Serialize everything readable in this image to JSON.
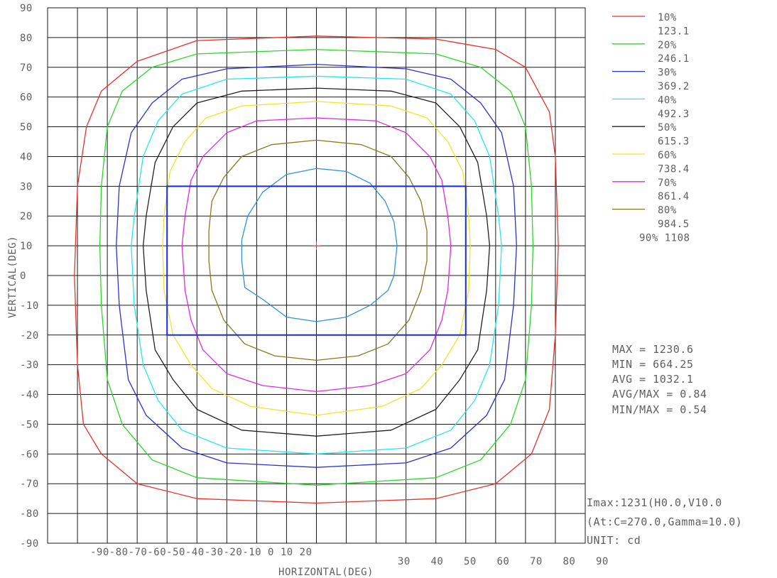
{
  "chart_data": {
    "type": "contour",
    "xlabel": "HORIZONTAL(DEG)",
    "ylabel": "VERTICAL(DEG)",
    "xlim": [
      -90,
      90
    ],
    "ylim": [
      -90,
      90
    ],
    "grid": true,
    "x_tick_labels_row": "-90-80-70-60-50-40-30-20-10 0 10 20",
    "x_tick_labels_right": [
      "30",
      "40",
      "50",
      "60",
      "70",
      "80",
      "90"
    ],
    "y_ticks": [
      "90",
      "80",
      "70",
      "60",
      "50",
      "40",
      "30",
      "20",
      "10",
      "0",
      "-10",
      "-20",
      "-30",
      "-40",
      "-50",
      "-60",
      "-70",
      "-80",
      "-90"
    ],
    "legend_position": "top-right",
    "legend": [
      {
        "percent": "10%",
        "value": "123.1",
        "color": "#e8302c"
      },
      {
        "percent": "20%",
        "value": "246.1",
        "color": "#2ad82a"
      },
      {
        "percent": "30%",
        "value": "369.2",
        "color": "#2a33d2"
      },
      {
        "percent": "40%",
        "value": "492.3",
        "color": "#27e8e8"
      },
      {
        "percent": "50%",
        "value": "615.3",
        "color": "#222222"
      },
      {
        "percent": "60%",
        "value": "738.4",
        "color": "#e8e82a"
      },
      {
        "percent": "70%",
        "value": "861.4",
        "color": "#e02ae0"
      },
      {
        "percent": "80%",
        "value": "984.5",
        "color": "#7f7f1f"
      },
      {
        "percent": "90%",
        "value": "1108",
        "color": "#2f91e0"
      }
    ],
    "contours": [
      {
        "level": "10%",
        "color": "#e8302c",
        "points": [
          [
            0,
            80.5
          ],
          [
            40,
            79.5
          ],
          [
            60,
            76
          ],
          [
            70,
            70
          ],
          [
            78,
            55
          ],
          [
            80,
            40
          ],
          [
            81,
            10
          ],
          [
            80,
            -20
          ],
          [
            78,
            -45
          ],
          [
            72,
            -60
          ],
          [
            60,
            -70
          ],
          [
            40,
            -75
          ],
          [
            0,
            -76.5
          ],
          [
            -40,
            -75
          ],
          [
            -60,
            -70
          ],
          [
            -72,
            -60
          ],
          [
            -78,
            -50
          ],
          [
            -80,
            -30
          ],
          [
            -81,
            0
          ],
          [
            -80,
            30
          ],
          [
            -77,
            50
          ],
          [
            -72,
            62
          ],
          [
            -60,
            72
          ],
          [
            -40,
            79
          ]
        ]
      },
      {
        "level": "20%",
        "color": "#2ad82a",
        "points": [
          [
            0,
            76
          ],
          [
            40,
            74.5
          ],
          [
            55,
            70
          ],
          [
            65,
            62
          ],
          [
            70,
            50
          ],
          [
            72,
            30
          ],
          [
            72.5,
            10
          ],
          [
            72,
            -10
          ],
          [
            70,
            -35
          ],
          [
            65,
            -50
          ],
          [
            55,
            -62
          ],
          [
            40,
            -68
          ],
          [
            0,
            -70.5
          ],
          [
            -40,
            -68
          ],
          [
            -55,
            -62
          ],
          [
            -65,
            -50
          ],
          [
            -70,
            -35
          ],
          [
            -72,
            -10
          ],
          [
            -72.5,
            10
          ],
          [
            -72,
            30
          ],
          [
            -70,
            50
          ],
          [
            -65,
            62
          ],
          [
            -55,
            70
          ],
          [
            -40,
            74.5
          ]
        ]
      },
      {
        "level": "30%",
        "color": "#2a33d2",
        "points": [
          [
            0,
            71
          ],
          [
            30,
            69.5
          ],
          [
            45,
            66
          ],
          [
            55,
            58
          ],
          [
            62,
            48
          ],
          [
            66,
            30
          ],
          [
            67,
            10
          ],
          [
            66,
            -10
          ],
          [
            63,
            -35
          ],
          [
            57,
            -47
          ],
          [
            45,
            -58
          ],
          [
            30,
            -63
          ],
          [
            0,
            -64.5
          ],
          [
            -30,
            -63
          ],
          [
            -45,
            -58
          ],
          [
            -57,
            -47
          ],
          [
            -63,
            -35
          ],
          [
            -66,
            -10
          ],
          [
            -67,
            10
          ],
          [
            -66,
            30
          ],
          [
            -62,
            48
          ],
          [
            -55,
            58
          ],
          [
            -45,
            66
          ],
          [
            -30,
            69.5
          ]
        ]
      },
      {
        "level": "40%",
        "color": "#27e8e8",
        "points": [
          [
            0,
            67
          ],
          [
            30,
            66
          ],
          [
            45,
            61
          ],
          [
            53,
            52
          ],
          [
            58,
            40
          ],
          [
            61,
            20
          ],
          [
            62,
            10
          ],
          [
            61,
            -10
          ],
          [
            58,
            -30
          ],
          [
            53,
            -42
          ],
          [
            45,
            -52
          ],
          [
            30,
            -58
          ],
          [
            0,
            -60
          ],
          [
            -30,
            -58
          ],
          [
            -45,
            -52
          ],
          [
            -53,
            -42
          ],
          [
            -58,
            -30
          ],
          [
            -61,
            -10
          ],
          [
            -62,
            10
          ],
          [
            -61,
            20
          ],
          [
            -58,
            40
          ],
          [
            -53,
            52
          ],
          [
            -45,
            61
          ],
          [
            -30,
            66
          ]
        ]
      },
      {
        "level": "50%",
        "color": "#222222",
        "points": [
          [
            0,
            63
          ],
          [
            25,
            62
          ],
          [
            40,
            58
          ],
          [
            48,
            50
          ],
          [
            54,
            38
          ],
          [
            57,
            20
          ],
          [
            58,
            10
          ],
          [
            57,
            -5
          ],
          [
            54,
            -25
          ],
          [
            48,
            -35
          ],
          [
            40,
            -45
          ],
          [
            25,
            -52
          ],
          [
            0,
            -54
          ],
          [
            -25,
            -52
          ],
          [
            -40,
            -45
          ],
          [
            -48,
            -35
          ],
          [
            -54,
            -25
          ],
          [
            -57,
            -5
          ],
          [
            -58,
            10
          ],
          [
            -57,
            20
          ],
          [
            -54,
            38
          ],
          [
            -48,
            50
          ],
          [
            -40,
            58
          ],
          [
            -25,
            62
          ]
        ]
      },
      {
        "level": "60%",
        "color": "#e8e82a",
        "points": [
          [
            0,
            58.5
          ],
          [
            25,
            57
          ],
          [
            37,
            53
          ],
          [
            44,
            45
          ],
          [
            49,
            35
          ],
          [
            51,
            20
          ],
          [
            51.5,
            10
          ],
          [
            51,
            -5
          ],
          [
            48,
            -20
          ],
          [
            42,
            -30
          ],
          [
            35,
            -38
          ],
          [
            22,
            -44
          ],
          [
            0,
            -47
          ],
          [
            -22,
            -44
          ],
          [
            -35,
            -38
          ],
          [
            -42,
            -30
          ],
          [
            -48,
            -20
          ],
          [
            -51,
            -5
          ],
          [
            -51.5,
            10
          ],
          [
            -51,
            20
          ],
          [
            -49,
            35
          ],
          [
            -44,
            45
          ],
          [
            -37,
            53
          ],
          [
            -25,
            57
          ]
        ]
      },
      {
        "level": "70%",
        "color": "#e02ae0",
        "points": [
          [
            0,
            53
          ],
          [
            20,
            52
          ],
          [
            30,
            48
          ],
          [
            38,
            40
          ],
          [
            42,
            32
          ],
          [
            44,
            20
          ],
          [
            45,
            10
          ],
          [
            44,
            -5
          ],
          [
            42,
            -15
          ],
          [
            38,
            -25
          ],
          [
            30,
            -33
          ],
          [
            18,
            -37
          ],
          [
            0,
            -39
          ],
          [
            -18,
            -37
          ],
          [
            -30,
            -33
          ],
          [
            -38,
            -25
          ],
          [
            -42,
            -15
          ],
          [
            -44,
            -5
          ],
          [
            -45,
            10
          ],
          [
            -44,
            20
          ],
          [
            -42,
            32
          ],
          [
            -38,
            40
          ],
          [
            -30,
            48
          ],
          [
            -20,
            52
          ]
        ]
      },
      {
        "level": "80%",
        "color": "#7f7f1f",
        "points": [
          [
            0,
            45.5
          ],
          [
            15,
            44
          ],
          [
            25,
            40
          ],
          [
            31,
            33
          ],
          [
            35,
            25
          ],
          [
            37,
            15
          ],
          [
            37,
            5
          ],
          [
            35,
            -5
          ],
          [
            31,
            -15
          ],
          [
            24,
            -23
          ],
          [
            14,
            -27
          ],
          [
            0,
            -28.5
          ],
          [
            -14,
            -27
          ],
          [
            -24,
            -23
          ],
          [
            -31,
            -15
          ],
          [
            -35,
            -5
          ],
          [
            -36,
            5
          ],
          [
            -36,
            15
          ],
          [
            -35,
            25
          ],
          [
            -31,
            33
          ],
          [
            -25,
            40
          ],
          [
            -15,
            44
          ]
        ]
      },
      {
        "level": "90%",
        "color": "#2f91e0",
        "points": [
          [
            0,
            36
          ],
          [
            10,
            35
          ],
          [
            18,
            31
          ],
          [
            23,
            25
          ],
          [
            26,
            18
          ],
          [
            27,
            10
          ],
          [
            26,
            0
          ],
          [
            24,
            -5
          ],
          [
            18,
            -10
          ],
          [
            10,
            -14
          ],
          [
            0,
            -15.5
          ],
          [
            -10,
            -14
          ],
          [
            -18,
            -8
          ],
          [
            -24,
            -4
          ],
          [
            -25,
            5
          ],
          [
            -25,
            12
          ],
          [
            -23,
            20
          ],
          [
            -18,
            28
          ],
          [
            -10,
            34
          ]
        ]
      }
    ],
    "rectangle": {
      "x": [
        -50,
        50
      ],
      "y": [
        -20,
        30
      ],
      "color": "#1c28e8"
    },
    "center_marker": {
      "x": 0,
      "y": 10,
      "color": "#ff3030"
    }
  },
  "stats": {
    "max": "MAX = 1230.6",
    "min": "MIN = 664.25",
    "avg": "AVG = 1032.1",
    "avg_max": "AVG/MAX = 0.84",
    "min_max": "MIN/MAX = 0.54"
  },
  "footer": {
    "imax": "Imax:1231(H0.0,V10.0",
    "at": "(At:C=270.0,Gamma=10.0)",
    "unit": "UNIT: cd"
  }
}
